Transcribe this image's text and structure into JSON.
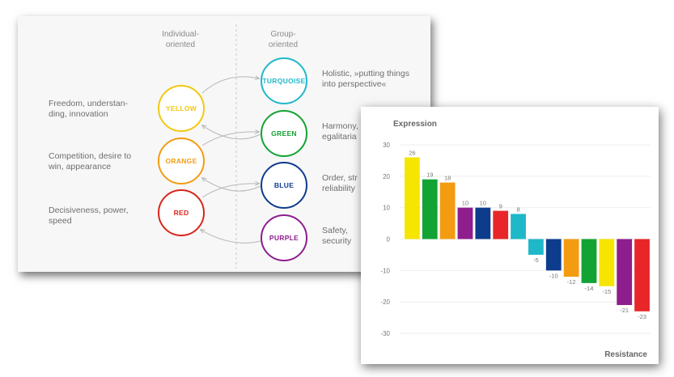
{
  "diagram": {
    "column_individual": [
      "Individual-",
      "oriented"
    ],
    "column_group": [
      "Group-",
      "oriented"
    ],
    "left_descriptions": [
      [
        "Freedom, understan-",
        "ding, innovation"
      ],
      [
        "Competition, desire to",
        "win, appearance"
      ],
      [
        "Decisiveness, power,",
        "speed"
      ]
    ],
    "right_descriptions": [
      [
        "Holistic, »putting things",
        "into perspective«"
      ],
      [
        "Harmony,",
        "egalitaria"
      ],
      [
        "Order, str",
        "reliability"
      ],
      [
        "Safety,",
        "security"
      ]
    ],
    "individual_circles": [
      {
        "label": "YELLOW",
        "color": "#f2c811"
      },
      {
        "label": "ORANGE",
        "color": "#f39c12"
      },
      {
        "label": "RED",
        "color": "#d9261c"
      }
    ],
    "group_circles": [
      {
        "label": "TURQUOISE",
        "color": "#1fb8c9"
      },
      {
        "label": "GREEN",
        "color": "#12a334"
      },
      {
        "label": "BLUE",
        "color": "#0d3c8c"
      },
      {
        "label": "PURPLE",
        "color": "#8e1d8e"
      }
    ]
  },
  "chart_data": {
    "type": "bar",
    "title": "Expression",
    "xlabel": "Resistance",
    "ylim": [
      -30,
      30
    ],
    "yticks": [
      30,
      20,
      10,
      0,
      -10,
      -20,
      -30
    ],
    "values": [
      26,
      19,
      18,
      10,
      10,
      9,
      8,
      -5,
      -10,
      -12,
      -14,
      -15,
      -21,
      -23
    ],
    "colors": [
      "#f6e500",
      "#12a334",
      "#f39c12",
      "#8e1d8e",
      "#0d3c8c",
      "#e8262a",
      "#1fb8c9",
      "#1fb8c9",
      "#0d3c8c",
      "#f39c12",
      "#12a334",
      "#f6e500",
      "#8e1d8e",
      "#e8262a"
    ]
  }
}
